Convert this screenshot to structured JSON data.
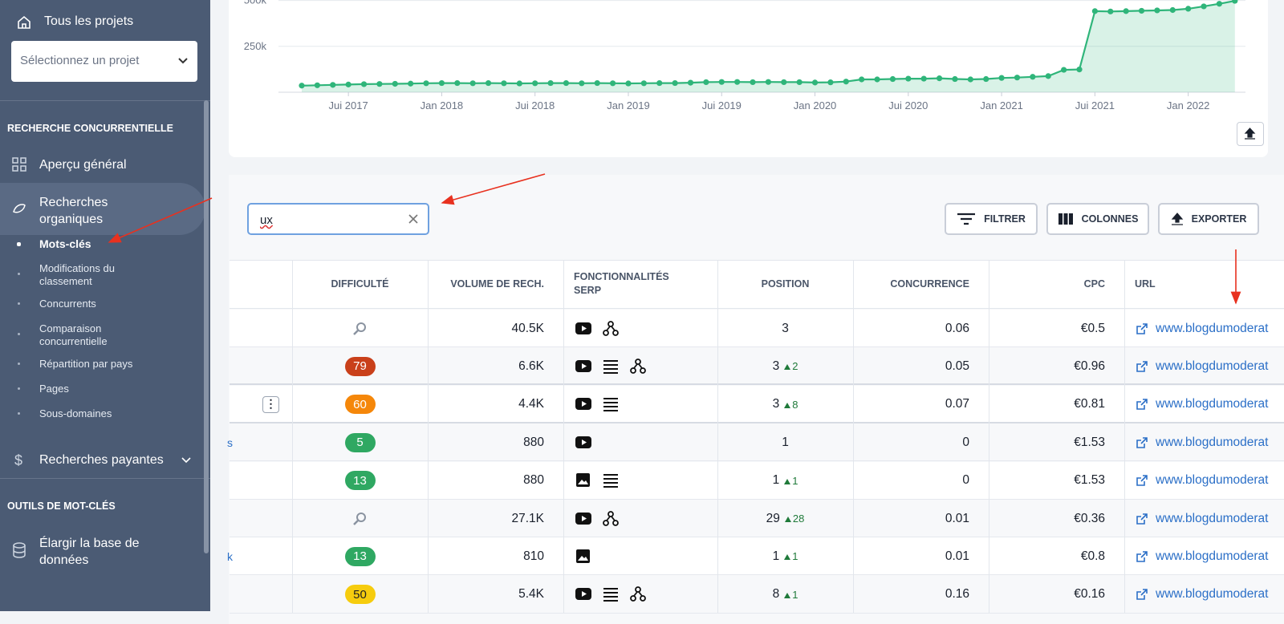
{
  "sidebar": {
    "all_projects": "Tous les projets",
    "select": "Sélectionnez un projet",
    "section1": "RECHERCHE CONCURRENTIELLE",
    "overview": "Aperçu général",
    "organic": "Recherches organiques",
    "organic_items": [
      "Mots-clés",
      "Modifications du classement",
      "Concurrents",
      "Comparaison concurrentielle",
      "Répartition par pays",
      "Pages",
      "Sous-domaines"
    ],
    "paid": "Recherches payantes",
    "section2": "OUTILS DE MOT-CLÉS",
    "expand": "Élargir la base de données"
  },
  "chart": {
    "type": "line",
    "color": "#2fb57a",
    "ylim": [
      0,
      510000
    ],
    "yticks": [
      {
        "value": 250000,
        "label": "250k"
      },
      {
        "value": 500000,
        "label": "500k"
      }
    ],
    "xlabels": [
      "Jui 2017",
      "Jan 2018",
      "Jui 2018",
      "Jan 2019",
      "Jui 2019",
      "Jan 2020",
      "Jui 2020",
      "Jan 2021",
      "Jui 2021",
      "Jan 2022"
    ],
    "values": [
      36000,
      38000,
      40000,
      42000,
      44000,
      45000,
      46000,
      47000,
      49000,
      50000,
      50000,
      49000,
      50000,
      49000,
      48000,
      49000,
      50000,
      50000,
      49000,
      50000,
      49000,
      48000,
      49000,
      50000,
      50000,
      52000,
      55000,
      56000,
      56000,
      55000,
      56000,
      55000,
      55000,
      53000,
      54000,
      58000,
      70000,
      70000,
      72000,
      74000,
      74000,
      76000,
      72000,
      70000,
      72000,
      78000,
      80000,
      84000,
      88000,
      122000,
      124000,
      442000,
      440000,
      442000,
      444000,
      446000,
      448000,
      455000,
      468000,
      482000,
      498000
    ]
  },
  "toolbar": {
    "search": "ux",
    "buttons": [
      "FILTRER",
      "COLONNES",
      "EXPORTER"
    ]
  },
  "table": {
    "columns": [
      "DIFFICULTÉ",
      "VOLUME DE RECH.",
      "FONCTIONNALITÉS SERP",
      "POSITION",
      "CONCURRENCE",
      "CPC",
      "URL"
    ],
    "rows": [
      {
        "difficulty": null,
        "volume": "40.5K",
        "position": 3,
        "change": null,
        "competition": 0.06,
        "cpc": "€0.5",
        "url": "www.blogdumoderat"
      },
      {
        "difficulty": 79,
        "volume": "6.6K",
        "position": 3,
        "change": 2,
        "competition": 0.05,
        "cpc": "€0.96",
        "url": "www.blogdumoderat"
      },
      {
        "difficulty": 60,
        "volume": "4.4K",
        "position": 3,
        "change": 8,
        "competition": 0.07,
        "cpc": "€0.81",
        "url": "www.blogdumoderat"
      },
      {
        "keyword": "s",
        "difficulty": 5,
        "volume": "880",
        "position": 1,
        "change": null,
        "competition": 0,
        "cpc": "€1.53",
        "url": "www.blogdumoderat"
      },
      {
        "difficulty": 13,
        "volume": "880",
        "position": 1,
        "change": 1,
        "competition": 0,
        "cpc": "€1.53",
        "url": "www.blogdumoderat"
      },
      {
        "difficulty": null,
        "volume": "27.1K",
        "position": 29,
        "change": 28,
        "competition": 0.01,
        "cpc": "€0.36",
        "url": "www.blogdumoderat"
      },
      {
        "keyword": "k",
        "difficulty": 13,
        "volume": "810",
        "position": 1,
        "change": 1,
        "competition": 0.01,
        "cpc": "€0.8",
        "url": "www.blogdumoderat"
      },
      {
        "difficulty": 50,
        "volume": "5.4K",
        "position": 8,
        "change": 1,
        "competition": 0.16,
        "cpc": "€0.16",
        "url": "www.blogdumoderat"
      }
    ]
  }
}
